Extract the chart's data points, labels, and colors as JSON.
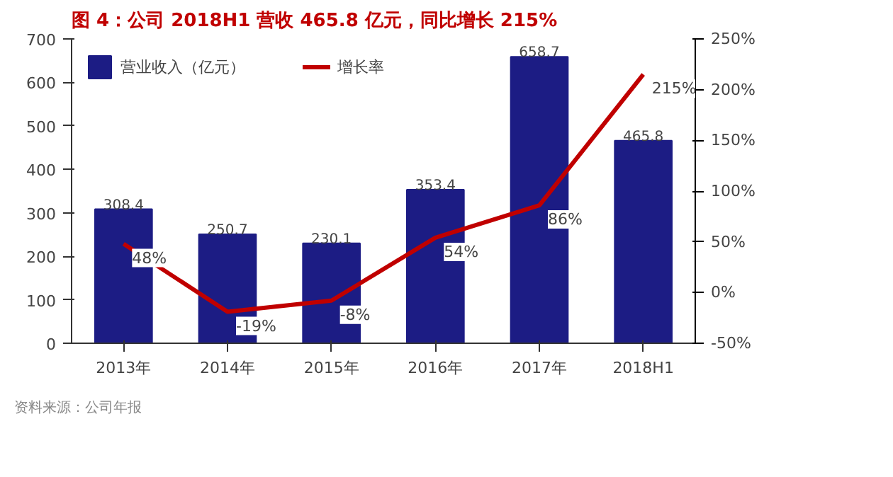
{
  "chart_data": {
    "type": "bar",
    "title": "图 4：公司 2018H1 营收 465.8 亿元，同比增长 215%",
    "categories": [
      "2013年",
      "2014年",
      "2015年",
      "2016年",
      "2017年",
      "2018H1"
    ],
    "series": [
      {
        "name": "营业收入（亿元）",
        "color": "#1c1c84",
        "values": [
          308.4,
          250.7,
          230.1,
          353.4,
          658.7,
          465.8
        ],
        "value_labels": [
          "308.4",
          "250.7",
          "230.1",
          "353.4",
          "658.7",
          "465.8"
        ]
      },
      {
        "name": "增长率",
        "type": "line",
        "axis": "y2",
        "color": "#c00000",
        "values": [
          48,
          -19,
          -8,
          54,
          86,
          215
        ],
        "value_labels": [
          "48%",
          "-19%",
          "-8%",
          "54%",
          "86%",
          "215%"
        ]
      }
    ],
    "ylim": [
      0,
      700
    ],
    "yticks": [
      0,
      100,
      200,
      300,
      400,
      500,
      600,
      700
    ],
    "y2lim": [
      -50,
      250
    ],
    "y2ticks": [
      {
        "value": -50,
        "label": "-50%"
      },
      {
        "value": 0,
        "label": "0%"
      },
      {
        "value": 50,
        "label": "50%"
      },
      {
        "value": 100,
        "label": "100%"
      },
      {
        "value": 150,
        "label": "150%"
      },
      {
        "value": 200,
        "label": "200%"
      },
      {
        "value": 250,
        "label": "250%"
      }
    ],
    "grid": false,
    "legend": "top left",
    "marker": "none",
    "line_style": "solid",
    "annotations": [
      "资料来源：公司年报"
    ]
  }
}
